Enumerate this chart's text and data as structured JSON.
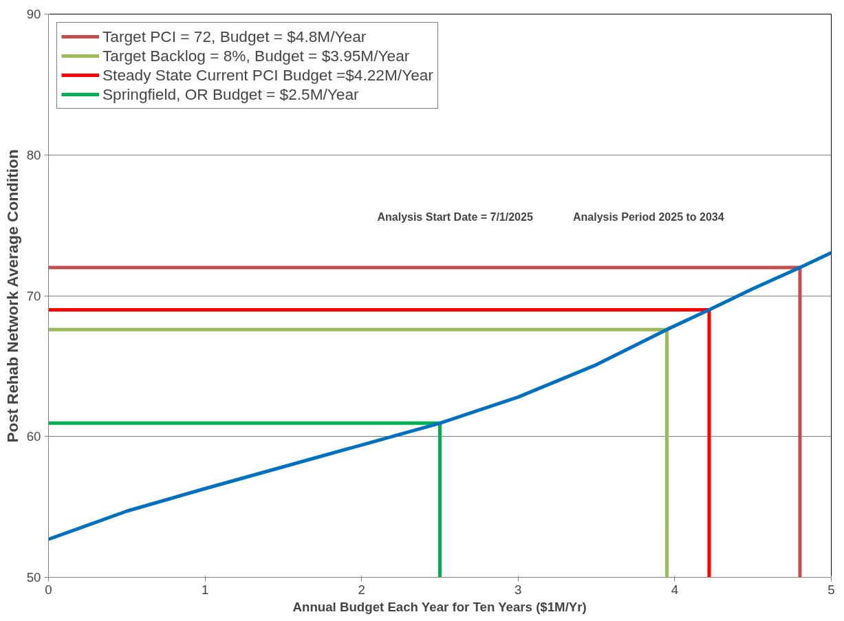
{
  "chart_data": {
    "type": "line",
    "xlabel": "Annual Budget Each Year for Ten Years ($1M/Yr)",
    "ylabel": "Post Rehab Network Average Condition",
    "xlim": [
      0,
      5
    ],
    "xticks": [
      0,
      1,
      2,
      3,
      4,
      5
    ],
    "ylim": [
      50,
      90
    ],
    "yticks": [
      50,
      60,
      70,
      80,
      90
    ],
    "grid": "y",
    "legend": "top left",
    "marker": "none",
    "line_style": "solid",
    "annotations": [
      "Analysis Start Date =  7/1/2025",
      "Analysis Period 2025 to 2034"
    ],
    "series": [
      {
        "name": "Target PCI = 72, Budget = $4.8M/Year",
        "color": "#c0504d",
        "x": [
          0,
          4.8,
          4.8
        ],
        "values": [
          72,
          72,
          50
        ]
      },
      {
        "name": "Target Backlog = 8%, Budget = $3.95M/Year",
        "color": "#9bbb59",
        "x": [
          0,
          3.95,
          3.95
        ],
        "values": [
          67.6,
          67.6,
          50
        ]
      },
      {
        "name": "Steady State Current PCI Budget =$4.22M/Year",
        "color": "#ff0000",
        "x": [
          0,
          4.22,
          4.22
        ],
        "values": [
          69,
          69,
          50
        ]
      },
      {
        "name": "Springfield, OR Budget = $2.5M/Year",
        "color": "#00b050",
        "x": [
          0,
          2.5,
          2.5
        ],
        "values": [
          60.95,
          60.95,
          50
        ]
      },
      {
        "color": "#0070c0",
        "x": [
          0,
          0.5,
          1,
          1.5,
          2,
          2.5,
          3,
          3.5,
          3.95,
          4.22,
          4.5,
          4.8,
          5
        ],
        "values": [
          52.7,
          54.7,
          56.3,
          57.85,
          59.4,
          60.95,
          62.8,
          65.1,
          67.6,
          69,
          70.5,
          72,
          73.05
        ]
      }
    ]
  }
}
